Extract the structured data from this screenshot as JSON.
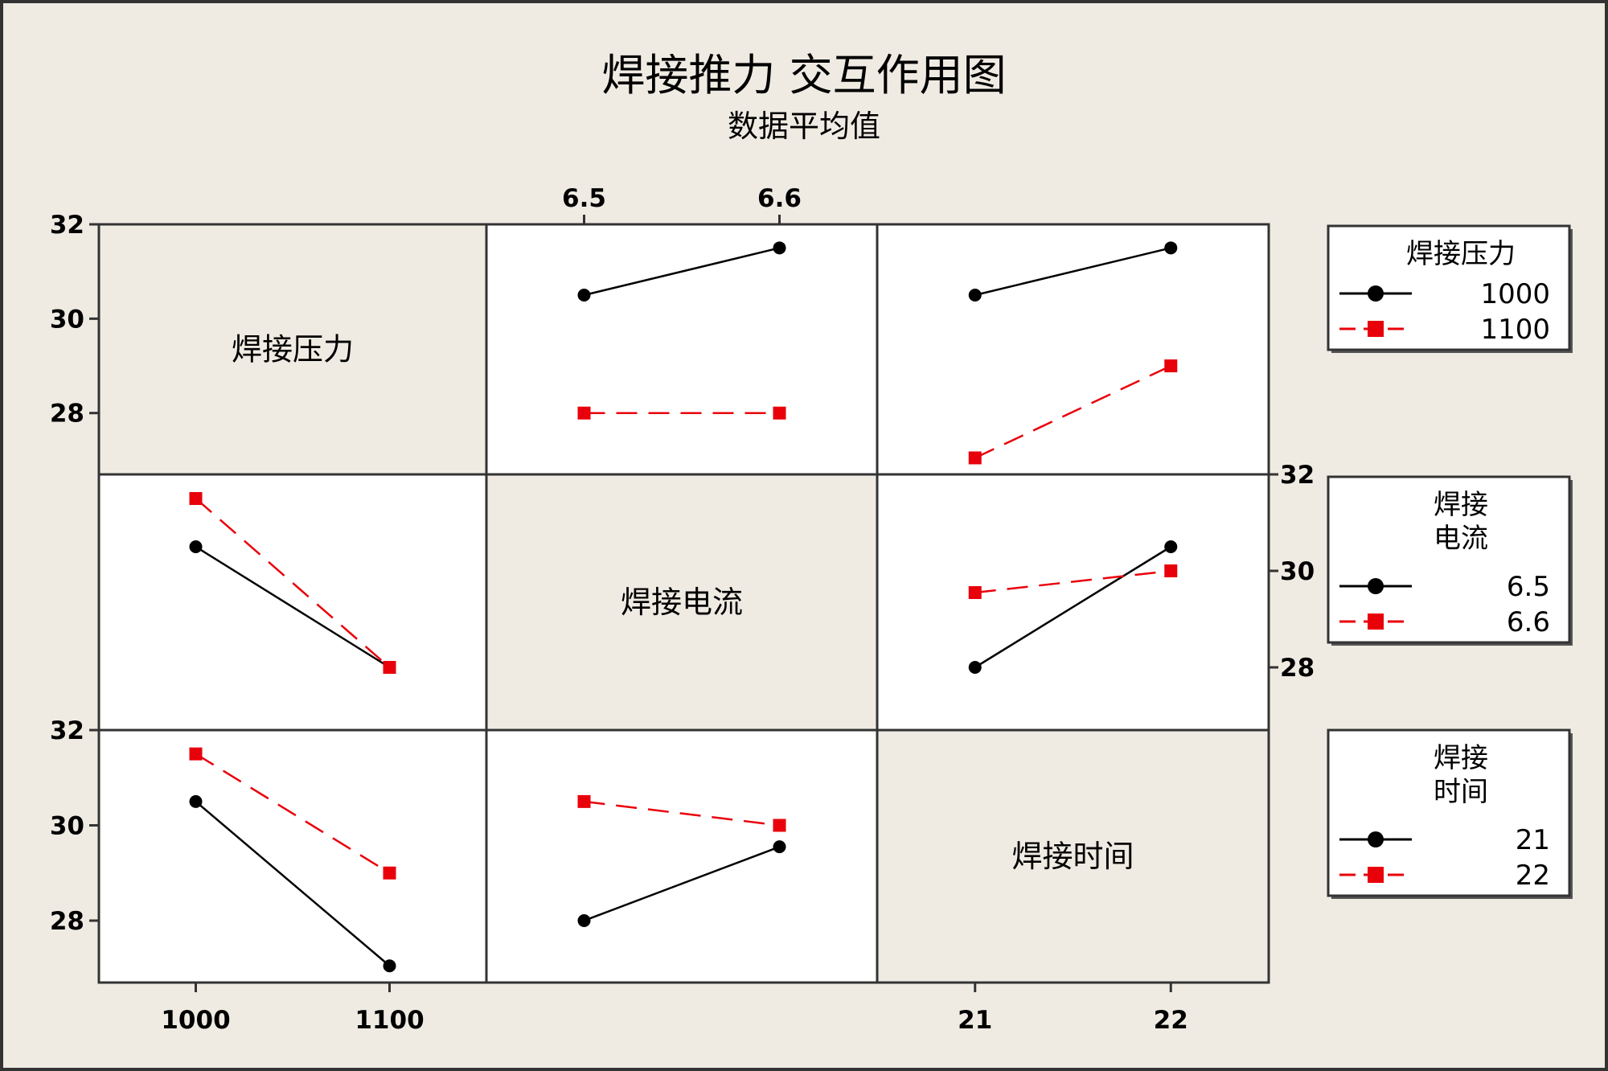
{
  "chart_data": {
    "type": "line",
    "title": "焊接推力 交互作用图",
    "subtitle": "数据平均值",
    "y_ticks": [
      28,
      30,
      32
    ],
    "ylim": [
      26.7,
      32
    ],
    "factors": [
      {
        "name": "焊接压力",
        "levels": [
          "1000",
          "1100"
        ],
        "legend_title_lines": [
          "焊接压力"
        ]
      },
      {
        "name": "焊接电流",
        "levels": [
          "6.5",
          "6.6"
        ],
        "legend_title_lines": [
          "焊接",
          "电流"
        ]
      },
      {
        "name": "焊接时间",
        "levels": [
          "21",
          "22"
        ],
        "legend_title_lines": [
          "焊接",
          "时间"
        ]
      }
    ],
    "series_style": {
      "level1": {
        "color": "#000000",
        "marker": "circle",
        "dash": "solid"
      },
      "level2": {
        "color": "#e8000b",
        "marker": "square",
        "dash": "dashed"
      }
    },
    "panels": [
      {
        "row": 0,
        "col": 1,
        "x_factor": 1,
        "trace_factor": 0,
        "series": [
          {
            "name": "1000",
            "values": [
              30.5,
              31.5
            ]
          },
          {
            "name": "1100",
            "values": [
              28.0,
              28.0
            ]
          }
        ]
      },
      {
        "row": 0,
        "col": 2,
        "x_factor": 2,
        "trace_factor": 0,
        "series": [
          {
            "name": "1000",
            "values": [
              30.5,
              31.5
            ]
          },
          {
            "name": "1100",
            "values": [
              27.05,
              29.0
            ]
          }
        ]
      },
      {
        "row": 1,
        "col": 0,
        "x_factor": 0,
        "trace_factor": 1,
        "series": [
          {
            "name": "6.5",
            "values": [
              30.5,
              28.0
            ]
          },
          {
            "name": "6.6",
            "values": [
              31.5,
              28.0
            ]
          }
        ]
      },
      {
        "row": 1,
        "col": 2,
        "x_factor": 2,
        "trace_factor": 1,
        "series": [
          {
            "name": "6.5",
            "values": [
              28.0,
              30.5
            ]
          },
          {
            "name": "6.6",
            "values": [
              29.55,
              30.0
            ]
          }
        ]
      },
      {
        "row": 2,
        "col": 0,
        "x_factor": 0,
        "trace_factor": 2,
        "series": [
          {
            "name": "21",
            "values": [
              30.5,
              27.05
            ]
          },
          {
            "name": "22",
            "values": [
              31.5,
              29.0
            ]
          }
        ]
      },
      {
        "row": 2,
        "col": 1,
        "x_factor": 1,
        "trace_factor": 2,
        "series": [
          {
            "name": "21",
            "values": [
              28.0,
              29.55
            ]
          },
          {
            "name": "22",
            "values": [
              30.5,
              30.0
            ]
          }
        ]
      }
    ]
  }
}
